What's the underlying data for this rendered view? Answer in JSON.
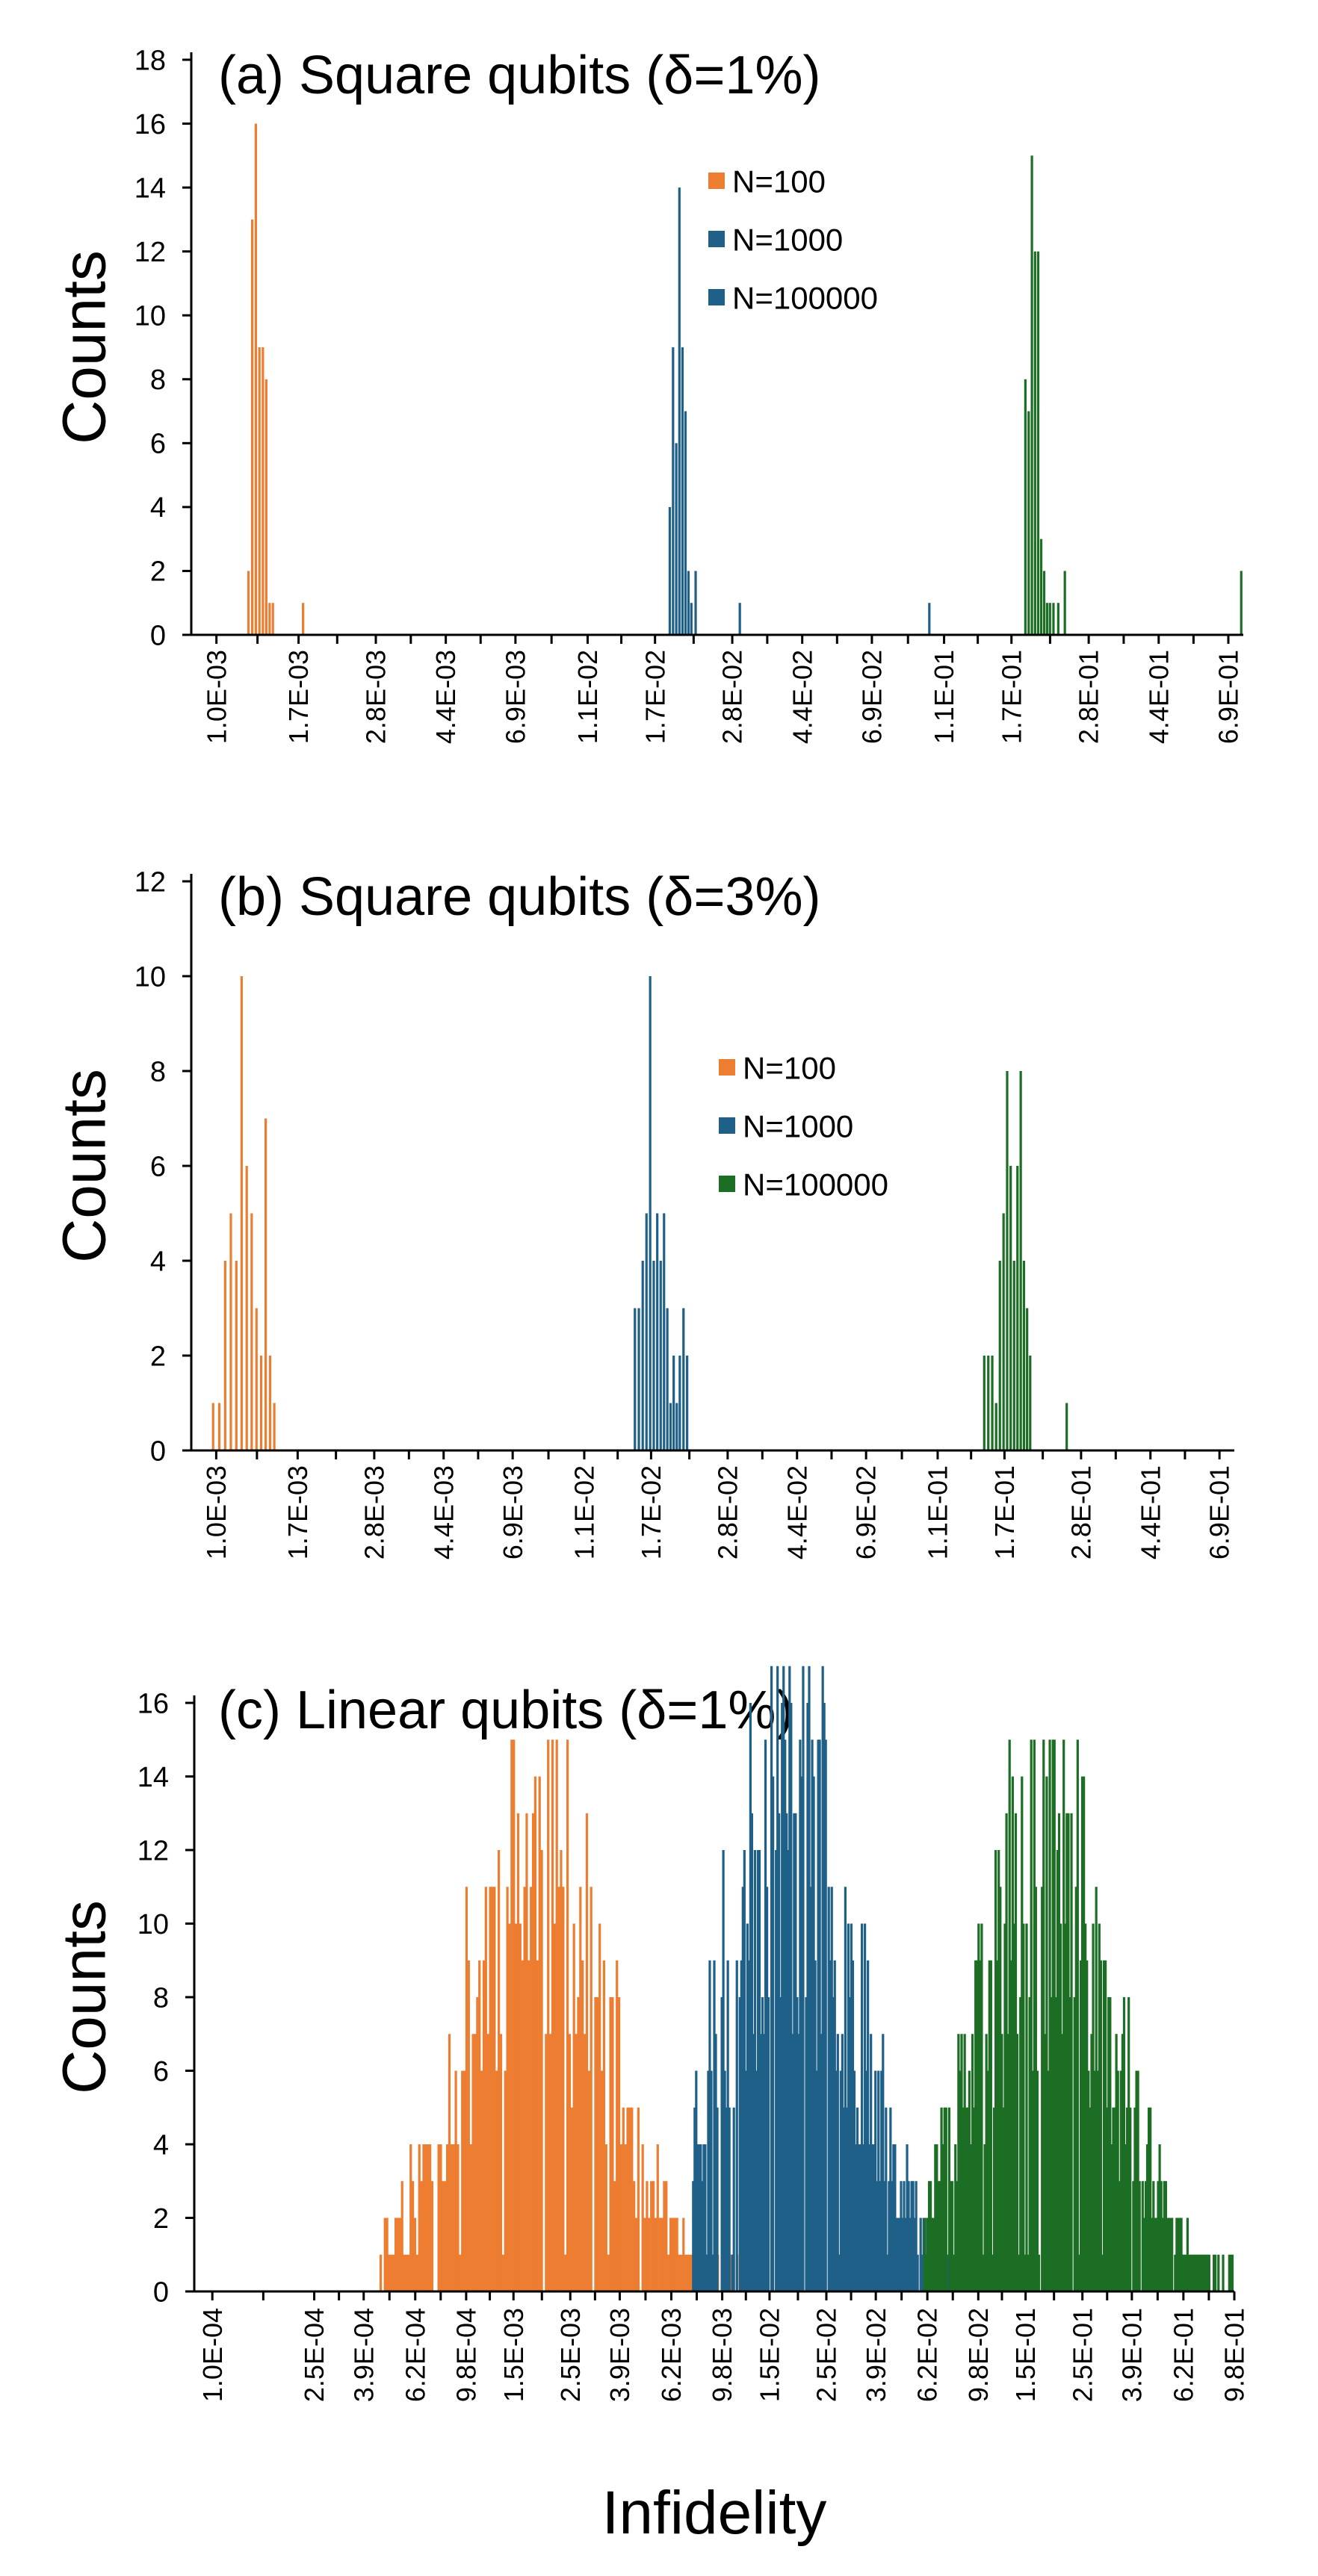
{
  "colors": {
    "N100": "#ED7D31",
    "N1000": "#1F6088",
    "N100000": "#1C6E24"
  },
  "chart_data": [
    {
      "type": "bar",
      "title": "(a) Square qubits (δ=1%)",
      "ylabel": "Counts",
      "xlabel": "",
      "ylim": [
        0,
        18
      ],
      "yticks": [
        0,
        2,
        4,
        6,
        8,
        10,
        12,
        14,
        16,
        18
      ],
      "xscale": "log",
      "xlim": [
        0.00085,
        0.76
      ],
      "xticks": [
        0.001,
        0.0017,
        0.0028,
        0.0044,
        0.0069,
        0.011,
        0.017,
        0.028,
        0.044,
        0.069,
        0.11,
        0.17,
        0.28,
        0.44,
        0.69
      ],
      "xtick_labels": [
        "1.0E-03",
        "1.7E-03",
        "2.8E-03",
        "4.4E-03",
        "6.9E-03",
        "1.1E-02",
        "1.7E-02",
        "2.8E-02",
        "4.4E-02",
        "6.9E-02",
        "1.1E-01",
        "1.7E-01",
        "2.8E-01",
        "4.4E-01",
        "6.9E-01"
      ],
      "legend": {
        "position": "top-center",
        "entries": [
          "N=100",
          "N=1000",
          "N=100000"
        ]
      },
      "series": [
        {
          "name": "N=100",
          "color_key": "N100",
          "x": [
            0.00123,
            0.00126,
            0.00129,
            0.00132,
            0.00135,
            0.00138,
            0.00141,
            0.00144,
            0.00175
          ],
          "values": [
            2,
            13,
            16,
            9,
            9,
            8,
            1,
            1,
            1
          ]
        },
        {
          "name": "N=1000",
          "color_key": "N1000",
          "x": [
            0.0187,
            0.0191,
            0.0195,
            0.0199,
            0.0203,
            0.0207,
            0.0211,
            0.0215,
            0.0221,
            0.0294
          ],
          "values": [
            4,
            9,
            6,
            14,
            9,
            7,
            2,
            1,
            2,
            1
          ]
        },
        {
          "name": "N=1000 (outlier)",
          "color_key": "N1000",
          "x": [
            0.1
          ],
          "values": [
            1
          ]
        },
        {
          "name": "N=100000",
          "color_key": "N100000",
          "x": [
            0.186,
            0.19,
            0.194,
            0.198,
            0.202,
            0.206,
            0.21,
            0.214,
            0.218,
            0.223,
            0.23,
            0.24,
            0.75
          ],
          "values": [
            8,
            7,
            15,
            12,
            12,
            3,
            2,
            1,
            1,
            1,
            1,
            2,
            2
          ]
        }
      ]
    },
    {
      "type": "bar",
      "title": "(b) Square qubits (δ=3%)",
      "ylabel": "Counts",
      "xlabel": "",
      "ylim": [
        0,
        12
      ],
      "yticks": [
        0,
        2,
        4,
        6,
        8,
        10,
        12
      ],
      "xscale": "log",
      "xlim": [
        0.00085,
        0.76
      ],
      "xticks": [
        0.001,
        0.0017,
        0.0028,
        0.0044,
        0.0069,
        0.011,
        0.017,
        0.028,
        0.044,
        0.069,
        0.11,
        0.17,
        0.28,
        0.44,
        0.69
      ],
      "xtick_labels": [
        "1.0E-03",
        "1.7E-03",
        "2.8E-03",
        "4.4E-03",
        "6.9E-03",
        "1.1E-02",
        "1.7E-02",
        "2.8E-02",
        "4.4E-02",
        "6.9E-02",
        "1.1E-01",
        "1.7E-01",
        "2.8E-01",
        "4.4E-01",
        "6.9E-01"
      ],
      "legend": {
        "position": "center-right",
        "entries": [
          "N=100",
          "N=1000",
          "N=100000"
        ]
      },
      "series": [
        {
          "name": "N=100",
          "color_key": "N100",
          "x": [
            0.00098,
            0.00102,
            0.00106,
            0.0011,
            0.00114,
            0.00118,
            0.00122,
            0.00126,
            0.0013,
            0.00134,
            0.00138,
            0.00142,
            0.00146
          ],
          "values": [
            1,
            1,
            4,
            5,
            4,
            10,
            6,
            5,
            3,
            2,
            7,
            2,
            1
          ]
        },
        {
          "name": "N=1000",
          "color_key": "N1000",
          "x": [
            0.0153,
            0.0157,
            0.0161,
            0.0165,
            0.0169,
            0.0173,
            0.0177,
            0.0181,
            0.0185,
            0.0189,
            0.0193,
            0.0197,
            0.0201,
            0.0205,
            0.021,
            0.0215
          ],
          "values": [
            3,
            3,
            4,
            5,
            10,
            4,
            5,
            4,
            5,
            3,
            1,
            2,
            1,
            2,
            3,
            2
          ]
        },
        {
          "name": "N=100000",
          "color_key": "N100000",
          "x": [
            0.149,
            0.153,
            0.157,
            0.161,
            0.165,
            0.169,
            0.173,
            0.177,
            0.181,
            0.185,
            0.189,
            0.193,
            0.197,
            0.201,
            0.255
          ],
          "values": [
            2,
            2,
            2,
            1,
            4,
            5,
            8,
            6,
            4,
            6,
            8,
            4,
            3,
            2,
            1
          ]
        }
      ]
    },
    {
      "type": "bar",
      "title": "(c) Linear qubits (δ=1%)",
      "ylabel": "Counts",
      "xlabel": "Infidelity",
      "ylim": [
        0,
        16
      ],
      "yticks": [
        0,
        2,
        4,
        6,
        8,
        10,
        12,
        14,
        16
      ],
      "xscale": "log",
      "xlim": [
        8.5e-05,
        0.98
      ],
      "xticks": [
        0.0001,
        0.00025,
        0.00039,
        0.00062,
        0.00098,
        0.0015,
        0.0025,
        0.0039,
        0.0062,
        0.0098,
        0.015,
        0.025,
        0.039,
        0.062,
        0.098,
        0.15,
        0.25,
        0.39,
        0.62,
        0.98
      ],
      "xtick_labels": [
        "1.0E-04",
        "2.5E-04",
        "3.9E-04",
        "6.2E-04",
        "9.8E-04",
        "1.5E-03",
        "2.5E-03",
        "3.9E-03",
        "6.2E-03",
        "9.8E-03",
        "1.5E-02",
        "2.5E-02",
        "3.9E-02",
        "6.2E-02",
        "9.8E-02",
        "1.5E-01",
        "2.5E-01",
        "3.9E-01",
        "6.2E-01",
        "9.8E-01"
      ],
      "legend": null,
      "series": [
        {
          "name": "N=100",
          "color_key": "N100",
          "dist": {
            "center": 0.0018,
            "spread_decades": 0.28,
            "peak": 13,
            "x_range": [
              0.00045,
              0.012
            ],
            "bins": 170,
            "seed": 11
          }
        },
        {
          "name": "N=1000",
          "color_key": "N1000",
          "dist": {
            "center": 0.018,
            "spread_decades": 0.26,
            "peak": 15,
            "x_range": [
              0.0075,
              0.075
            ],
            "bins": 170,
            "seed": 23
          }
        },
        {
          "name": "N=100000",
          "color_key": "N100000",
          "dist": {
            "center": 0.18,
            "spread_decades": 0.26,
            "peak": 13,
            "x_range": [
              0.06,
              0.97
            ],
            "bins": 200,
            "seed": 37
          }
        }
      ]
    }
  ]
}
